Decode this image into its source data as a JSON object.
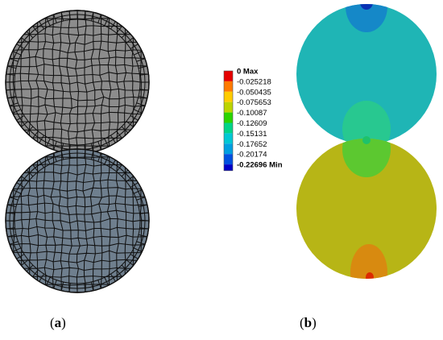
{
  "panel_a": {
    "label": "a",
    "top_disc": {
      "fill": "#8c8c8c"
    },
    "bottom_disc": {
      "fill": "#6f7f8e"
    }
  },
  "panel_b": {
    "label": "b",
    "top_disc": {
      "fill": "#1fb5b5"
    },
    "bottom_disc": {
      "fill": "#b7b516"
    }
  },
  "legend": {
    "entries": [
      {
        "text": "0 Max",
        "color": "#e60000",
        "bold": true
      },
      {
        "text": "-0.025218",
        "color": "#ff7a00",
        "bold": false
      },
      {
        "text": "-0.050435",
        "color": "#ffcc00",
        "bold": false
      },
      {
        "text": "-0.075653",
        "color": "#bcd400",
        "bold": false
      },
      {
        "text": "-0.10087",
        "color": "#2bd400",
        "bold": false
      },
      {
        "text": "-0.12609",
        "color": "#00d488",
        "bold": false
      },
      {
        "text": "-0.15131",
        "color": "#00c8d4",
        "bold": false
      },
      {
        "text": "-0.17652",
        "color": "#009fe0",
        "bold": false
      },
      {
        "text": "-0.20174",
        "color": "#0050e0",
        "bold": false
      },
      {
        "text": "-0.22696 Min",
        "color": "#0000c8",
        "bold": true
      }
    ]
  }
}
